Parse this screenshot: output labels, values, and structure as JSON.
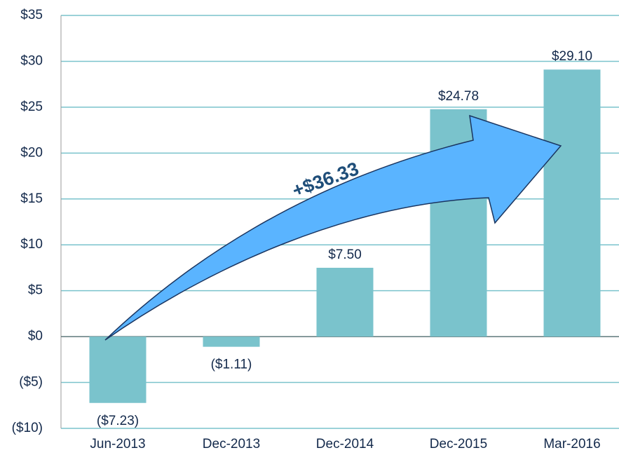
{
  "chart_data": {
    "type": "bar",
    "categories": [
      "Jun-2013",
      "Dec-2013",
      "Dec-2014",
      "Dec-2015",
      "Mar-2016"
    ],
    "values": [
      -7.23,
      -1.11,
      7.5,
      24.78,
      29.1
    ],
    "value_labels": [
      "($7.23)",
      "($1.11)",
      "$7.50",
      "$24.78",
      "$29.10"
    ],
    "color": "#7ac3cc",
    "ylim": [
      -10,
      35
    ],
    "yticks": [
      {
        "value": -10,
        "label": "($10)"
      },
      {
        "value": -5,
        "label": "($5)"
      },
      {
        "value": 0,
        "label": "$0"
      },
      {
        "value": 5,
        "label": "$5"
      },
      {
        "value": 10,
        "label": "$10"
      },
      {
        "value": 15,
        "label": "$15"
      },
      {
        "value": 20,
        "label": "$20"
      },
      {
        "value": 25,
        "label": "$25"
      },
      {
        "value": 30,
        "label": "$30"
      },
      {
        "value": 35,
        "label": "$35"
      }
    ],
    "grid": true,
    "annotation": "+$36.33"
  }
}
